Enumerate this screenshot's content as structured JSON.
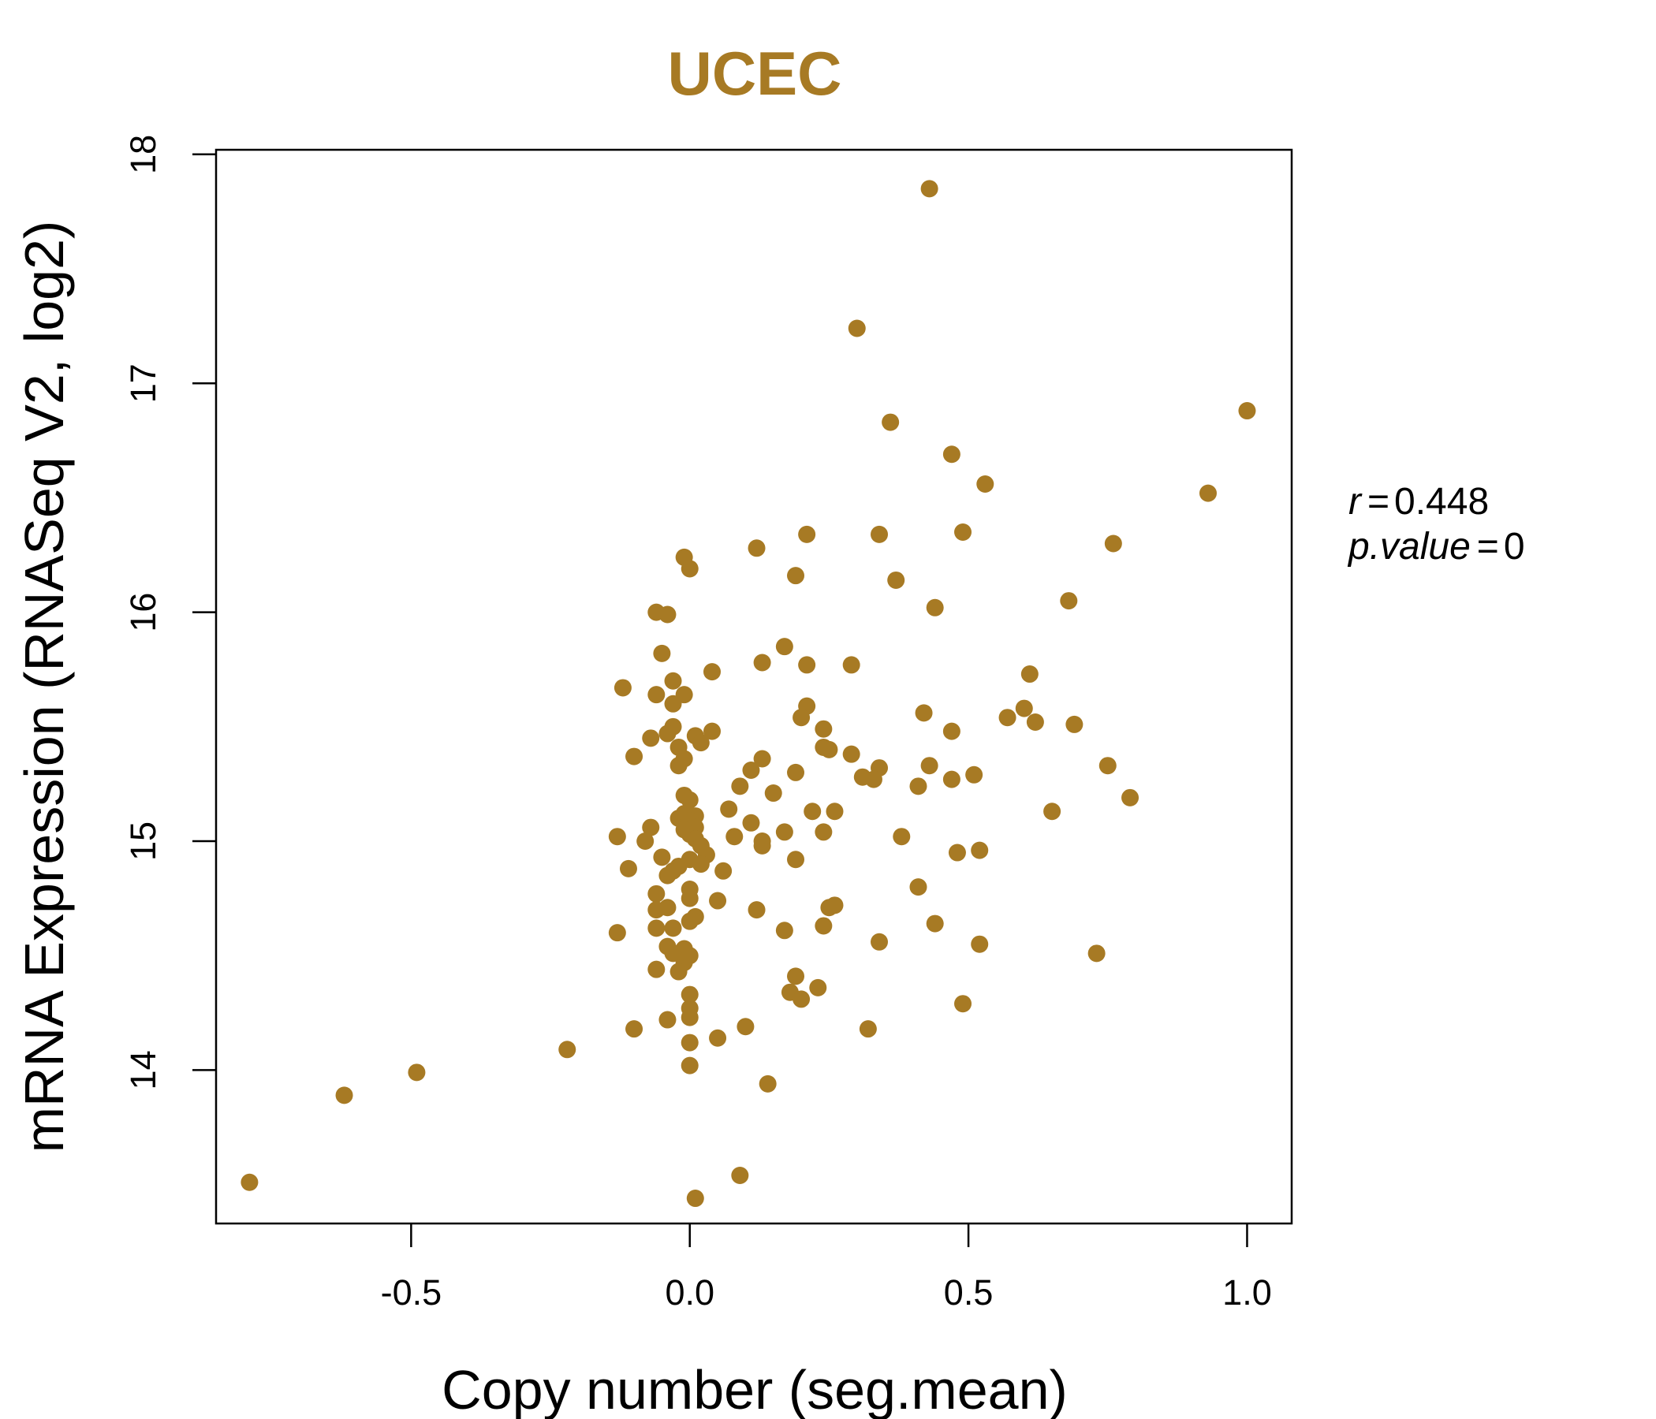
{
  "chart_data": {
    "type": "scatter",
    "title": "UCEC",
    "xlabel": "Copy number (seg.mean)",
    "ylabel": "mRNA Expression (RNASeq V2, log2)",
    "xlim": [
      -0.85,
      1.08
    ],
    "ylim": [
      13.33,
      18.02
    ],
    "xticks": [
      -0.5,
      0.0,
      0.5,
      1.0
    ],
    "xtick_labels": [
      "-0.5",
      "0.0",
      "0.5",
      "1.0"
    ],
    "yticks": [
      14,
      15,
      16,
      17,
      18
    ],
    "ytick_labels": [
      "14",
      "15",
      "16",
      "17",
      "18"
    ],
    "grid": false,
    "legend": "none",
    "colors": {
      "title": "#A77A24",
      "points": "#A77A24"
    },
    "annotations": {
      "r_label": "r",
      "r_value": "0.448",
      "p_label": "p.value",
      "p_value": "0"
    },
    "points": [
      {
        "x": 0.43,
        "y": 17.85
      },
      {
        "x": 0.3,
        "y": 17.24
      },
      {
        "x": 1.0,
        "y": 16.88
      },
      {
        "x": 0.36,
        "y": 16.83
      },
      {
        "x": 0.47,
        "y": 16.69
      },
      {
        "x": 0.53,
        "y": 16.56
      },
      {
        "x": 0.93,
        "y": 16.52
      },
      {
        "x": 0.49,
        "y": 16.35
      },
      {
        "x": 0.21,
        "y": 16.34
      },
      {
        "x": 0.34,
        "y": 16.34
      },
      {
        "x": 0.76,
        "y": 16.3
      },
      {
        "x": 0.12,
        "y": 16.28
      },
      {
        "x": -0.01,
        "y": 16.24
      },
      {
        "x": 0.0,
        "y": 16.19
      },
      {
        "x": 0.19,
        "y": 16.16
      },
      {
        "x": 0.37,
        "y": 16.14
      },
      {
        "x": 0.68,
        "y": 16.05
      },
      {
        "x": 0.44,
        "y": 16.02
      },
      {
        "x": -0.06,
        "y": 16.0
      },
      {
        "x": -0.04,
        "y": 15.99
      },
      {
        "x": 0.17,
        "y": 15.85
      },
      {
        "x": -0.05,
        "y": 15.82
      },
      {
        "x": 0.13,
        "y": 15.78
      },
      {
        "x": 0.21,
        "y": 15.77
      },
      {
        "x": 0.29,
        "y": 15.77
      },
      {
        "x": 0.04,
        "y": 15.74
      },
      {
        "x": 0.61,
        "y": 15.73
      },
      {
        "x": -0.03,
        "y": 15.7
      },
      {
        "x": -0.12,
        "y": 15.67
      },
      {
        "x": -0.06,
        "y": 15.64
      },
      {
        "x": -0.01,
        "y": 15.64
      },
      {
        "x": -0.03,
        "y": 15.6
      },
      {
        "x": 0.21,
        "y": 15.59
      },
      {
        "x": 0.6,
        "y": 15.58
      },
      {
        "x": 0.42,
        "y": 15.56
      },
      {
        "x": 0.57,
        "y": 15.54
      },
      {
        "x": 0.2,
        "y": 15.54
      },
      {
        "x": 0.62,
        "y": 15.52
      },
      {
        "x": 0.69,
        "y": 15.51
      },
      {
        "x": -0.03,
        "y": 15.5
      },
      {
        "x": 0.24,
        "y": 15.49
      },
      {
        "x": 0.04,
        "y": 15.48
      },
      {
        "x": 0.47,
        "y": 15.48
      },
      {
        "x": -0.04,
        "y": 15.47
      },
      {
        "x": 0.01,
        "y": 15.46
      },
      {
        "x": -0.07,
        "y": 15.45
      },
      {
        "x": 0.02,
        "y": 15.43
      },
      {
        "x": -0.02,
        "y": 15.41
      },
      {
        "x": 0.24,
        "y": 15.41
      },
      {
        "x": 0.25,
        "y": 15.4
      },
      {
        "x": 0.29,
        "y": 15.38
      },
      {
        "x": -0.1,
        "y": 15.37
      },
      {
        "x": 0.13,
        "y": 15.36
      },
      {
        "x": -0.01,
        "y": 15.36
      },
      {
        "x": -0.02,
        "y": 15.33
      },
      {
        "x": 0.43,
        "y": 15.33
      },
      {
        "x": 0.34,
        "y": 15.32
      },
      {
        "x": 0.75,
        "y": 15.33
      },
      {
        "x": 0.11,
        "y": 15.31
      },
      {
        "x": 0.19,
        "y": 15.3
      },
      {
        "x": 0.51,
        "y": 15.29
      },
      {
        "x": 0.31,
        "y": 15.28
      },
      {
        "x": 0.47,
        "y": 15.27
      },
      {
        "x": 0.33,
        "y": 15.27
      },
      {
        "x": 0.09,
        "y": 15.24
      },
      {
        "x": 0.41,
        "y": 15.24
      },
      {
        "x": 0.15,
        "y": 15.21
      },
      {
        "x": -0.01,
        "y": 15.2
      },
      {
        "x": 0.79,
        "y": 15.19
      },
      {
        "x": -0.0,
        "y": 15.18
      },
      {
        "x": 0.07,
        "y": 15.14
      },
      {
        "x": 0.22,
        "y": 15.13
      },
      {
        "x": 0.26,
        "y": 15.13
      },
      {
        "x": 0.65,
        "y": 15.13
      },
      {
        "x": -0.01,
        "y": 15.12
      },
      {
        "x": 0.01,
        "y": 15.11
      },
      {
        "x": -0.02,
        "y": 15.1
      },
      {
        "x": 0.0,
        "y": 15.09
      },
      {
        "x": 0.11,
        "y": 15.08
      },
      {
        "x": 0.01,
        "y": 15.06
      },
      {
        "x": -0.07,
        "y": 15.06
      },
      {
        "x": -0.01,
        "y": 15.05
      },
      {
        "x": 0.17,
        "y": 15.04
      },
      {
        "x": 0.24,
        "y": 15.04
      },
      {
        "x": 0.0,
        "y": 15.03
      },
      {
        "x": -0.13,
        "y": 15.02
      },
      {
        "x": 0.08,
        "y": 15.02
      },
      {
        "x": 0.38,
        "y": 15.02
      },
      {
        "x": 0.01,
        "y": 15.01
      },
      {
        "x": -0.08,
        "y": 15.0
      },
      {
        "x": 0.13,
        "y": 15.0
      },
      {
        "x": 0.13,
        "y": 14.98
      },
      {
        "x": 0.02,
        "y": 14.98
      },
      {
        "x": 0.52,
        "y": 14.96
      },
      {
        "x": 0.48,
        "y": 14.95
      },
      {
        "x": 0.03,
        "y": 14.94
      },
      {
        "x": -0.05,
        "y": 14.93
      },
      {
        "x": 0.19,
        "y": 14.92
      },
      {
        "x": -0.0,
        "y": 14.92
      },
      {
        "x": 0.02,
        "y": 14.9
      },
      {
        "x": -0.02,
        "y": 14.89
      },
      {
        "x": -0.11,
        "y": 14.88
      },
      {
        "x": -0.03,
        "y": 14.87
      },
      {
        "x": 0.06,
        "y": 14.87
      },
      {
        "x": -0.04,
        "y": 14.85
      },
      {
        "x": 0.41,
        "y": 14.8
      },
      {
        "x": -0.0,
        "y": 14.79
      },
      {
        "x": -0.06,
        "y": 14.77
      },
      {
        "x": 0.0,
        "y": 14.75
      },
      {
        "x": 0.05,
        "y": 14.74
      },
      {
        "x": 0.26,
        "y": 14.72
      },
      {
        "x": 0.25,
        "y": 14.71
      },
      {
        "x": -0.04,
        "y": 14.71
      },
      {
        "x": -0.06,
        "y": 14.7
      },
      {
        "x": 0.12,
        "y": 14.7
      },
      {
        "x": 0.01,
        "y": 14.67
      },
      {
        "x": -0.0,
        "y": 14.65
      },
      {
        "x": 0.44,
        "y": 14.64
      },
      {
        "x": 0.24,
        "y": 14.63
      },
      {
        "x": -0.06,
        "y": 14.62
      },
      {
        "x": -0.03,
        "y": 14.62
      },
      {
        "x": 0.17,
        "y": 14.61
      },
      {
        "x": -0.13,
        "y": 14.6
      },
      {
        "x": 0.34,
        "y": 14.56
      },
      {
        "x": 0.52,
        "y": 14.55
      },
      {
        "x": -0.04,
        "y": 14.54
      },
      {
        "x": -0.01,
        "y": 14.53
      },
      {
        "x": 0.73,
        "y": 14.51
      },
      {
        "x": -0.03,
        "y": 14.51
      },
      {
        "x": 0.0,
        "y": 14.5
      },
      {
        "x": -0.01,
        "y": 14.47
      },
      {
        "x": -0.06,
        "y": 14.44
      },
      {
        "x": -0.02,
        "y": 14.43
      },
      {
        "x": 0.19,
        "y": 14.41
      },
      {
        "x": 0.23,
        "y": 14.36
      },
      {
        "x": 0.18,
        "y": 14.34
      },
      {
        "x": -0.0,
        "y": 14.33
      },
      {
        "x": 0.2,
        "y": 14.31
      },
      {
        "x": 0.49,
        "y": 14.29
      },
      {
        "x": -0.0,
        "y": 14.27
      },
      {
        "x": 0.0,
        "y": 14.23
      },
      {
        "x": -0.04,
        "y": 14.22
      },
      {
        "x": 0.1,
        "y": 14.19
      },
      {
        "x": -0.1,
        "y": 14.18
      },
      {
        "x": 0.32,
        "y": 14.18
      },
      {
        "x": 0.05,
        "y": 14.14
      },
      {
        "x": -0.0,
        "y": 14.12
      },
      {
        "x": -0.22,
        "y": 14.09
      },
      {
        "x": -0.0,
        "y": 14.02
      },
      {
        "x": -0.49,
        "y": 13.99
      },
      {
        "x": 0.14,
        "y": 13.94
      },
      {
        "x": -0.62,
        "y": 13.89
      },
      {
        "x": 0.09,
        "y": 13.54
      },
      {
        "x": -0.79,
        "y": 13.51
      },
      {
        "x": 0.01,
        "y": 13.44
      }
    ]
  }
}
